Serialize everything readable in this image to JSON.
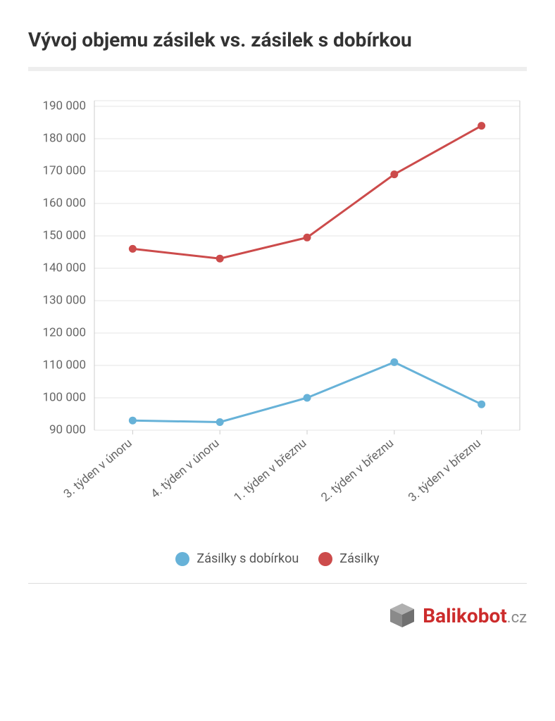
{
  "title": "Vývoj objemu zásilek vs. zásilek s dobírkou",
  "chart": {
    "type": "line",
    "background_color": "#ffffff",
    "grid_color": "#e6e6e6",
    "axis_color": "#cccccc",
    "label_color": "#666666",
    "label_fontsize": 17,
    "ylim": [
      90000,
      190000
    ],
    "ytick_step": 10000,
    "yticks": [
      90000,
      100000,
      110000,
      120000,
      130000,
      140000,
      150000,
      160000,
      170000,
      180000,
      190000
    ],
    "ytick_labels": [
      "90 000",
      "100 000",
      "110 000",
      "120 000",
      "130 000",
      "140 000",
      "150 000",
      "160 000",
      "170 000",
      "180 000",
      "190 000"
    ],
    "categories": [
      "3. týden v únoru",
      "4. týden v únoru",
      "1. týden v březnu",
      "2. týden v březnu",
      "3. týden v březnu"
    ],
    "x_label_rotation": -40,
    "line_width": 3,
    "marker_radius": 5.5,
    "series": [
      {
        "name": "Zásilky s dobírkou",
        "color": "#67b2d8",
        "values": [
          93000,
          92500,
          100000,
          111000,
          98000
        ]
      },
      {
        "name": "Zásilky",
        "color": "#cc4b4b",
        "values": [
          146000,
          143000,
          149500,
          169000,
          184000
        ]
      }
    ]
  },
  "legend": {
    "dot_size": 20,
    "fontsize": 18,
    "text_color": "#555555"
  },
  "brand": {
    "name": "Balikobot",
    "suffix": ".cz",
    "name_color": "#cc2b2b",
    "suffix_color": "#888888",
    "name_fontsize": 28,
    "suffix_fontsize": 22,
    "box_top": "#b0b0b0",
    "box_left": "#8a8a8a",
    "box_right": "#707070"
  },
  "divider_color": "#eeeeee",
  "footer_divider_color": "#dddddd"
}
